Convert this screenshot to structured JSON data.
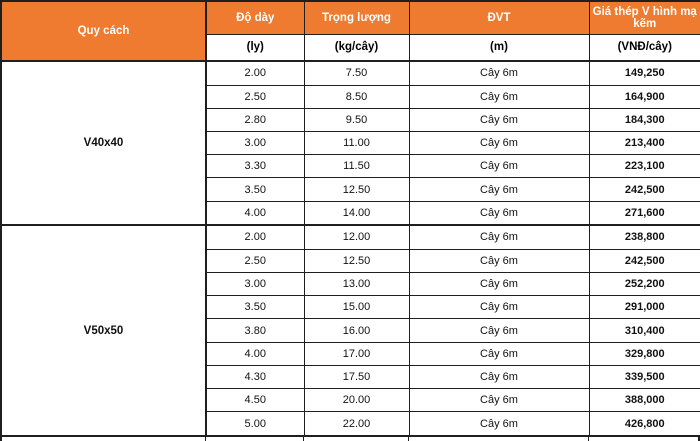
{
  "colors": {
    "header_bg": "#EE7B2F",
    "header_text": "#FFFFFF",
    "border": "#1F1F1F",
    "text": "#111111"
  },
  "table": {
    "columns": [
      {
        "label": "Quy cách"
      },
      {
        "label": "Độ dày",
        "unit": "(ly)"
      },
      {
        "label": "Trọng lượng",
        "unit": "(kg/cây)"
      },
      {
        "label": "ĐVT",
        "unit": "(m)"
      },
      {
        "label": "Giá thép V hình mạ kẽm",
        "unit": "(VNĐ/cây)"
      }
    ],
    "sections": [
      {
        "name": "V40x40",
        "rows": [
          [
            "2.00",
            "7.50",
            "Cây 6m",
            "149,250"
          ],
          [
            "2.50",
            "8.50",
            "Cây 6m",
            "164,900"
          ],
          [
            "2.80",
            "9.50",
            "Cây 6m",
            "184,300"
          ],
          [
            "3.00",
            "11.00",
            "Cây 6m",
            "213,400"
          ],
          [
            "3.30",
            "11.50",
            "Cây 6m",
            "223,100"
          ],
          [
            "3.50",
            "12.50",
            "Cây 6m",
            "242,500"
          ],
          [
            "4.00",
            "14.00",
            "Cây 6m",
            "271,600"
          ]
        ]
      },
      {
        "name": "V50x50",
        "rows": [
          [
            "2.00",
            "12.00",
            "Cây 6m",
            "238,800"
          ],
          [
            "2.50",
            "12.50",
            "Cây 6m",
            "242,500"
          ],
          [
            "3.00",
            "13.00",
            "Cây 6m",
            "252,200"
          ],
          [
            "3.50",
            "15.00",
            "Cây 6m",
            "291,000"
          ],
          [
            "3.80",
            "16.00",
            "Cây 6m",
            "310,400"
          ],
          [
            "4.00",
            "17.00",
            "Cây 6m",
            "329,800"
          ],
          [
            "4.30",
            "17.50",
            "Cây 6m",
            "339,500"
          ],
          [
            "4.50",
            "20.00",
            "Cây 6m",
            "388,000"
          ],
          [
            "5.00",
            "22.00",
            "Cây 6m",
            "426,800"
          ]
        ]
      }
    ]
  }
}
